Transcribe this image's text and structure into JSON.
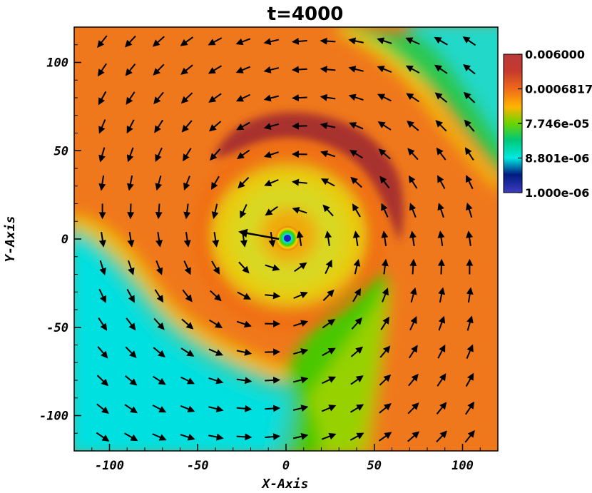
{
  "chart_data": {
    "type": "heatmap",
    "title": "t=4000",
    "xlabel": "X-Axis",
    "ylabel": "Y-Axis",
    "xlim": [
      -120,
      120
    ],
    "ylim": [
      -120,
      120
    ],
    "x_ticks": [
      -100,
      -50,
      0,
      50,
      100
    ],
    "y_ticks": [
      -100,
      -50,
      0,
      50,
      100
    ],
    "x_tick_labels": [
      "-100",
      "-50",
      "0",
      "50",
      "100"
    ],
    "y_tick_labels": [
      "-100",
      "-50",
      "0",
      "50",
      "100"
    ],
    "colorbar": {
      "scale": "log",
      "min": 1e-06,
      "max": 0.006,
      "tick_labels": [
        "0.006000",
        "0.0006817",
        "7.746e-05",
        "8.801e-06",
        "1.000e-06"
      ],
      "colors": [
        "#bf3a3a",
        "#e8581c",
        "#ffd400",
        "#2ad400",
        "#00e8e0",
        "#001478",
        "#3a3ab8"
      ]
    },
    "vector_field": {
      "description_hidden": false,
      "grid_spacing": 16,
      "pattern": "counter-clockwise vortex centered at origin"
    }
  }
}
